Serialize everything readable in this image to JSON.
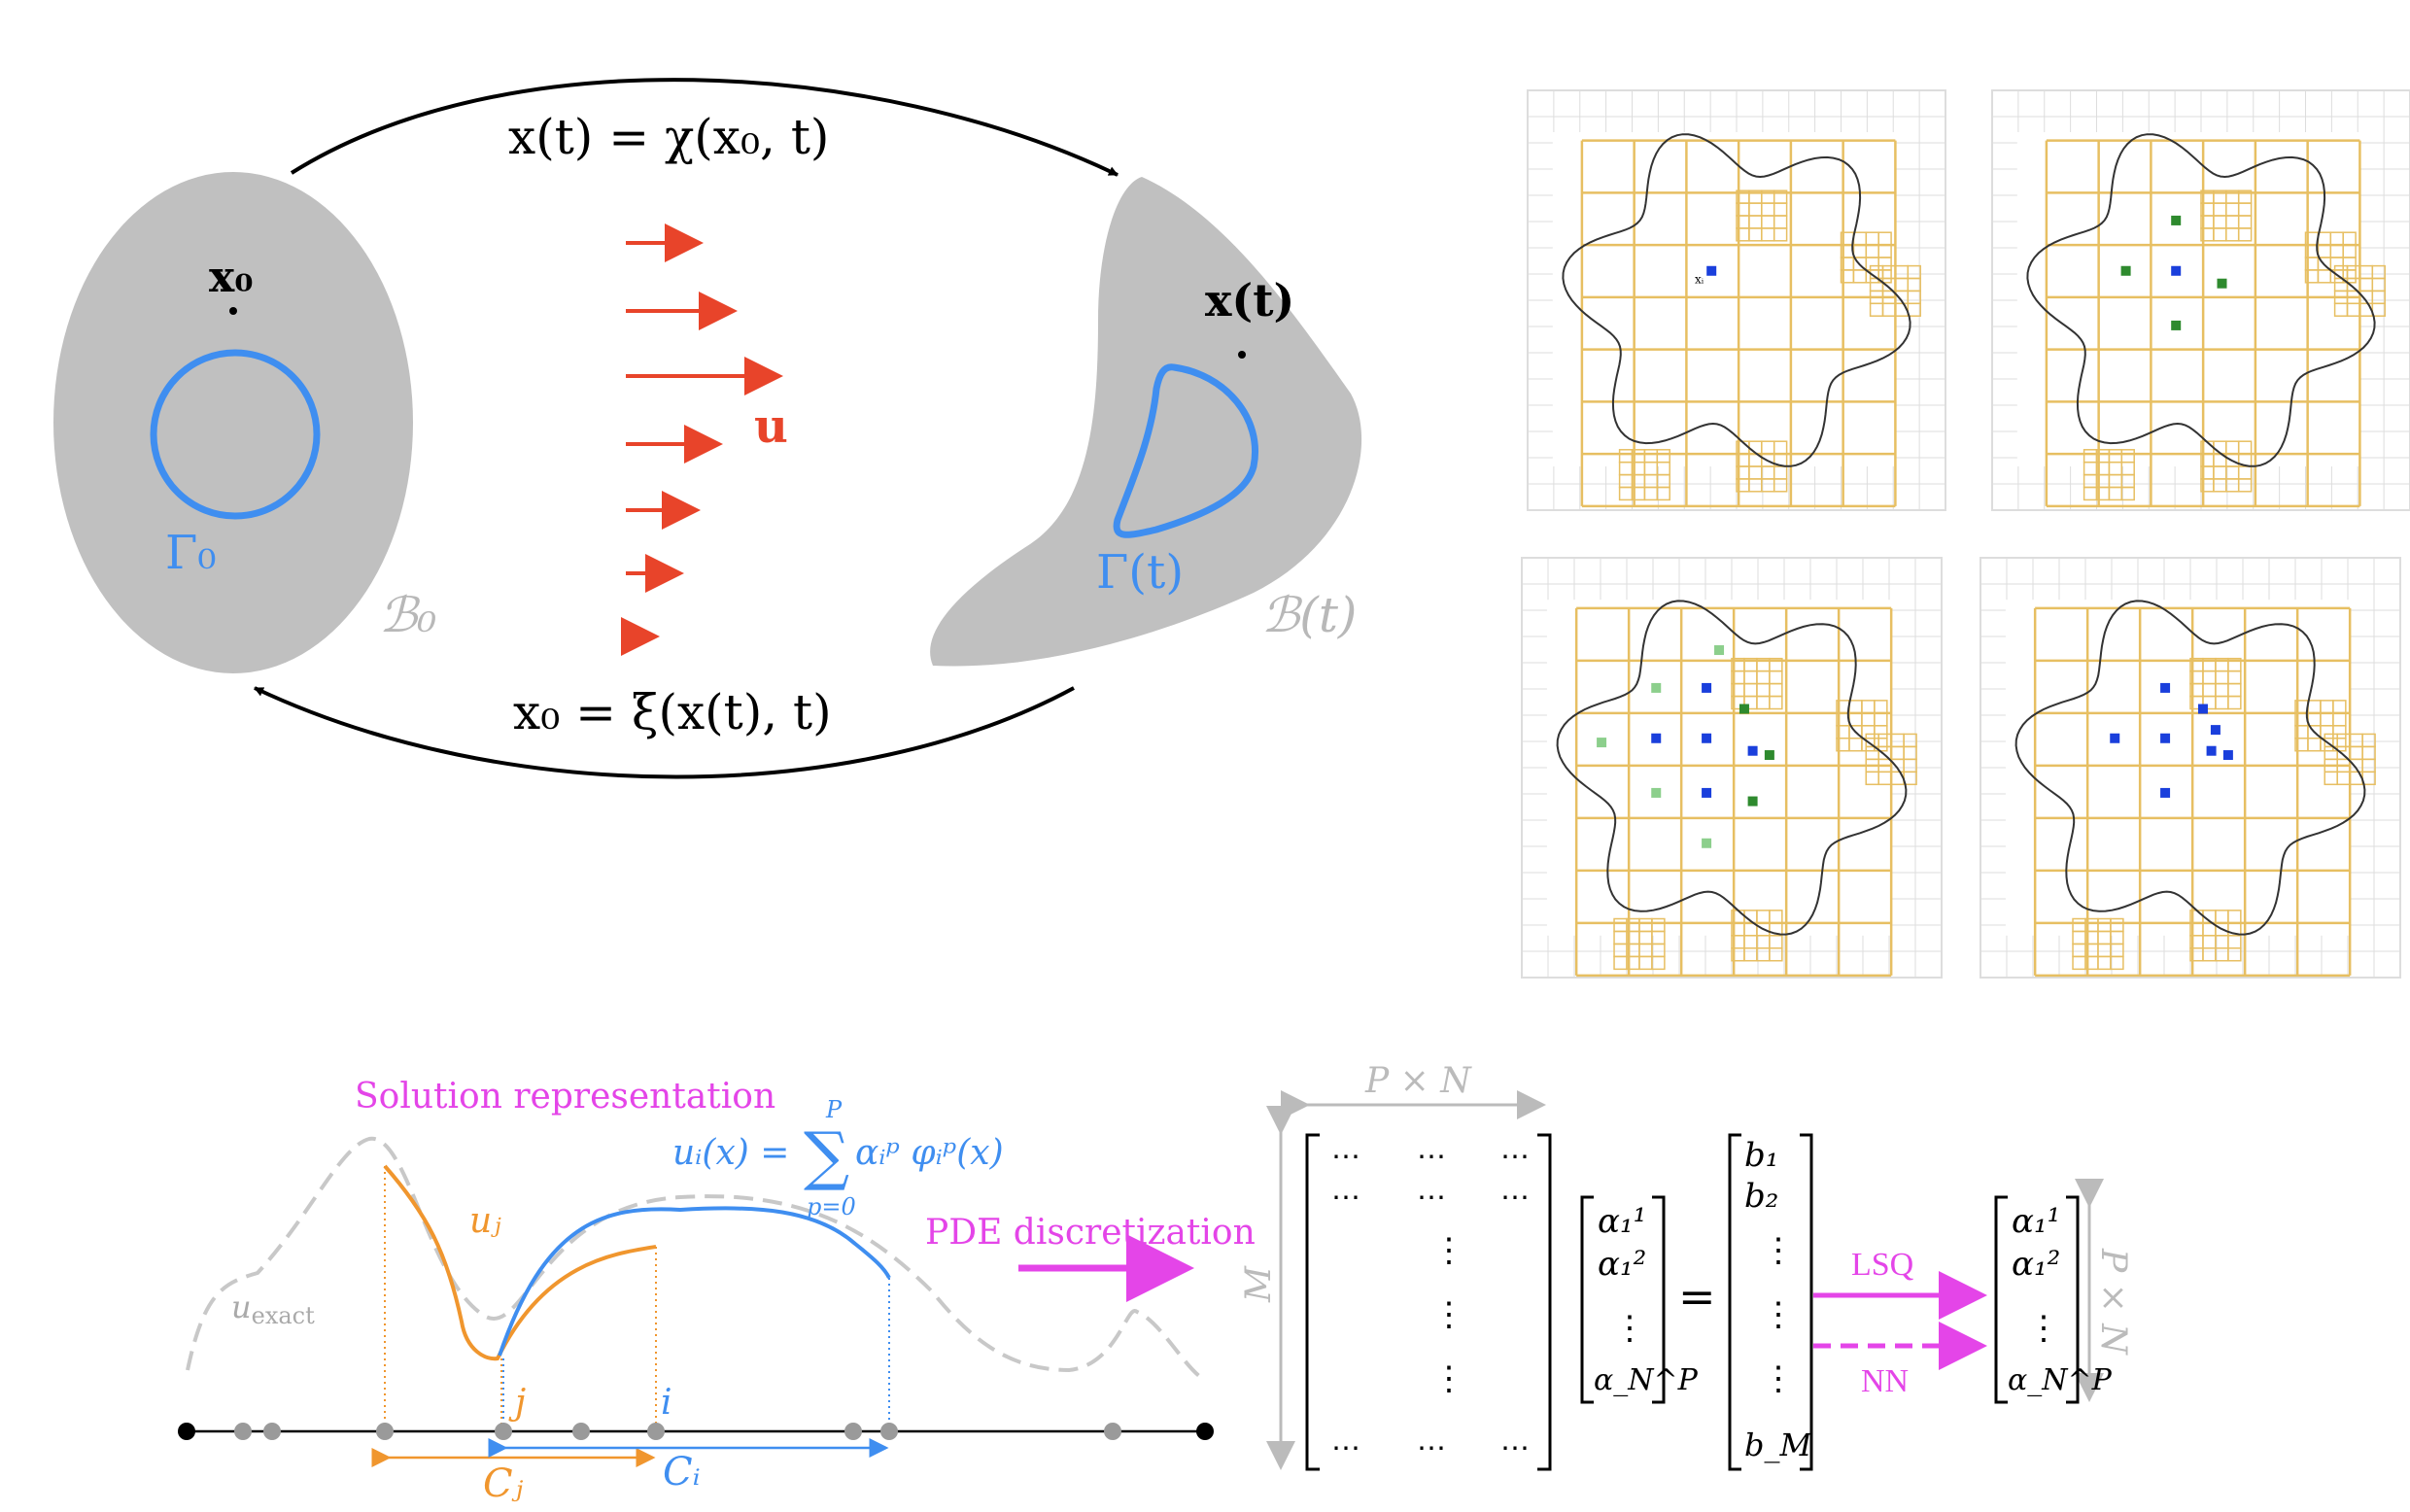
{
  "panel_lagrangian": {
    "forward_map": "x(t) = χ(x₀, t)",
    "inverse_map": "x₀ = ξ(x(t), t)",
    "initial_point": "x₀",
    "current_point": "x(t)",
    "velocity": "u",
    "initial_interface": "Γ₀",
    "current_interface": "Γ(t)",
    "initial_domain": "ℬ₀",
    "current_domain": "ℬ(t)",
    "colors": {
      "domain": "#c0c0c0",
      "interface": "#3f8ef0",
      "velocity": "#e8442a",
      "arrow": "#000000",
      "domain_label": "#b8b8b8"
    }
  },
  "panel_quadtree": {
    "point_label": "xᵢ",
    "colors": {
      "boundary": "#333333",
      "cells": "#e7bf62",
      "grid": "#dddddd",
      "center": "#1a3fdc",
      "neighbor": "#2e8a2e",
      "second_neighbor": "#8ccf8c"
    }
  },
  "panel_representation": {
    "title": "Solution representation",
    "formula_lhs": "uᵢ(x) =",
    "formula_term": "αᵢᵖ φᵢᵖ(x)",
    "sum_upper": "P",
    "sum_lower": "p=0",
    "label_uj": "uⱼ",
    "label_exact_u": "u",
    "label_exact_sub": "exact",
    "label_j": "j",
    "label_i": "i",
    "label_Cj": "Cⱼ",
    "label_Ci": "Cᵢ",
    "colors": {
      "orange": "#f0962e",
      "blue": "#3f8ef0",
      "exact": "#c8c8c8",
      "title": "#e445e8"
    }
  },
  "panel_system": {
    "arrow_label": "PDE discretization",
    "dim_top": "P × N",
    "dim_left": "M",
    "dim_right": "P × N",
    "equals": "=",
    "row_dots": "⋯",
    "col_dots": "⋮",
    "alpha_1": "α₁¹",
    "alpha_2": "α₁²",
    "alpha_last": "α_N^P",
    "b_1": "b₁",
    "b_2": "b₂",
    "b_last": "b_M",
    "lsq_label": "LSQ",
    "nn_label": "NN",
    "colors": {
      "magenta": "#e445e8",
      "dim": "#bbbbbb"
    }
  }
}
